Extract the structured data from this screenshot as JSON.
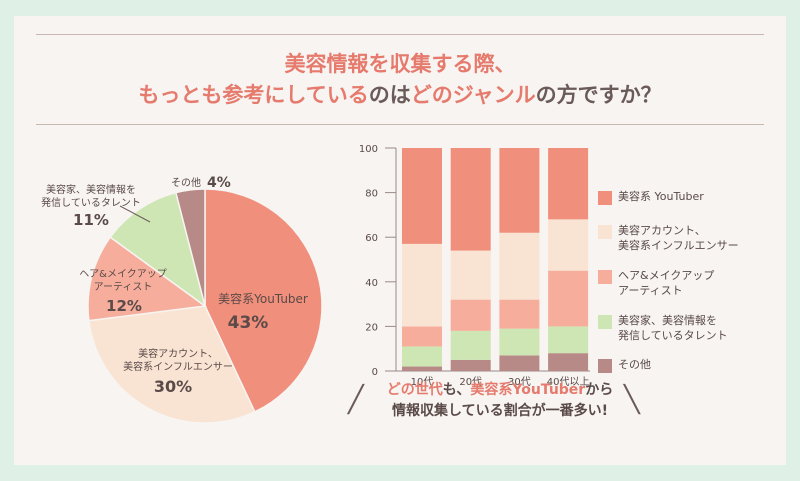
{
  "headline": {
    "line1": "美容情報を収集する際、",
    "line2_accent": "もっとも参考にしている",
    "line2_mid": "のは",
    "line2_accent2": "どのジャンル",
    "line2_end": "の方ですか？"
  },
  "colors": {
    "youtuber": "#f08f7b",
    "account": "#f9e3d2",
    "hairmake": "#f6ad9c",
    "beauty_expert": "#cde6b4",
    "other": "#b88a87",
    "accent": "#e57a6d"
  },
  "chart_data": [
    {
      "type": "pie",
      "slices": [
        {
          "label": "美容系YouTuber",
          "value": 43,
          "pct": "43%"
        },
        {
          "label": "美容アカウント、\n美容系インフルエンサー",
          "value": 30,
          "pct": "30%"
        },
        {
          "label": "ヘア&メイクアップ\nアーティスト",
          "value": 12,
          "pct": "12%"
        },
        {
          "label": "美容家、美容情報を\n発信しているタレント",
          "value": 11,
          "pct": "11%"
        },
        {
          "label": "その他",
          "value": 4,
          "pct": "4%"
        }
      ]
    },
    {
      "type": "bar",
      "stacked": true,
      "categories": [
        "10代",
        "20代",
        "30代",
        "40代以上"
      ],
      "ylim": [
        0,
        100
      ],
      "yticks": [
        0,
        20,
        40,
        60,
        80,
        100
      ],
      "series": [
        {
          "name": "その他",
          "key": "other",
          "values": [
            2,
            5,
            7,
            8
          ]
        },
        {
          "name": "美容家、美容情報を\n発信しているタレント",
          "key": "beauty_expert",
          "values": [
            9,
            13,
            12,
            12
          ]
        },
        {
          "name": "ヘア&メイクアップ\nアーティスト",
          "key": "hairmake",
          "values": [
            9,
            14,
            13,
            25
          ]
        },
        {
          "name": "美容アカウント、\n美容系インフルエンサー",
          "key": "account",
          "values": [
            37,
            22,
            30,
            23
          ]
        },
        {
          "name": "美容系 YouTuber",
          "key": "youtuber",
          "values": [
            43,
            46,
            38,
            32
          ]
        }
      ]
    }
  ],
  "legend": [
    {
      "key": "youtuber",
      "label": "美容系 YouTuber"
    },
    {
      "key": "account",
      "label": "美容アカウント、\n美容系インフルエンサー"
    },
    {
      "key": "hairmake",
      "label": "ヘア&メイクアップ\nアーティスト"
    },
    {
      "key": "beauty_expert",
      "label": "美容家、美容情報を\n発信しているタレント"
    },
    {
      "key": "other",
      "label": "その他"
    }
  ],
  "conclusion": {
    "a": "どの世代",
    "b": "も、",
    "c": "美容系YouTuber",
    "d": "から",
    "line2": "情報収集している割合が一番多い!"
  }
}
